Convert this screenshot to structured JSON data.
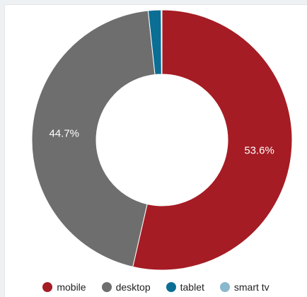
{
  "chart_data": {
    "type": "pie",
    "categories": [
      "mobile",
      "desktop",
      "tablet",
      "smart tv"
    ],
    "values": [
      53.6,
      44.7,
      1.6,
      0.1
    ],
    "value_labels": [
      "53.6%",
      "44.7%",
      "",
      ""
    ],
    "colors": [
      "#a51c24",
      "#6e6e6e",
      "#0b6e94",
      "#8ab8cc"
    ],
    "donut": true,
    "legend_position": "bottom"
  }
}
